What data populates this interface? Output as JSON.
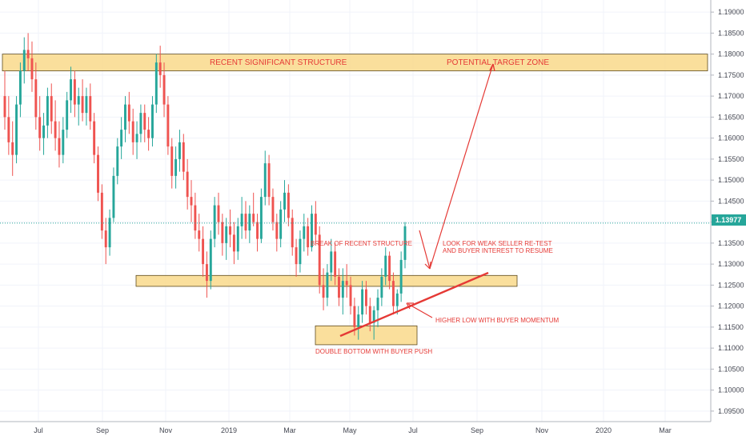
{
  "chart_data": {
    "type": "candlestick",
    "y_axis": {
      "min": 1.0925,
      "max": 1.1925,
      "ticks": [
        "1.19000",
        "1.18500",
        "1.18000",
        "1.17500",
        "1.17000",
        "1.16500",
        "1.16000",
        "1.15500",
        "1.15000",
        "1.14500",
        "1.14000",
        "1.13500",
        "1.13000",
        "1.12500",
        "1.12000",
        "1.11500",
        "1.11000",
        "1.10500",
        "1.10000",
        "1.09500"
      ],
      "last_price": "1.13977"
    },
    "x_axis": {
      "labels": [
        "Jul",
        "Sep",
        "Nov",
        "2019",
        "Mar",
        "May",
        "Jul",
        "Sep",
        "Nov",
        "2020",
        "Mar"
      ]
    },
    "grid": true,
    "up_color": "#26a69a",
    "down_color": "#ef5350",
    "zones": [
      {
        "name": "recent-significant-structure",
        "top": 1.18,
        "bottom": 1.176
      },
      {
        "name": "support-retest-zone",
        "top": 1.1273,
        "bottom": 1.1247
      },
      {
        "name": "double-bottom-zone",
        "top": 1.1153,
        "bottom": 1.1108
      }
    ],
    "annotations": {
      "top_zone_left": "RECENT SIGNIFICANT STRUCTURE",
      "top_zone_right": "POTENTIAL TARGET ZONE",
      "break": "BREAK OF RECENT STRUCTURE",
      "retest_line1": "LOOK FOR WEAK SELLER RE-TEST",
      "retest_line2": "AND BUYER INTEREST TO RESUME",
      "higher_low": "HIGHER LOW WITH BUYER MOMENTUM",
      "double_bottom": "DOUBLE BOTTOM WITH BUYER PUSH"
    },
    "annotation_color": "#e53935",
    "zone_fill": "#f9d98b",
    "candles": [
      [
        1.17,
        1.176,
        1.162,
        1.165
      ],
      [
        1.165,
        1.17,
        1.156,
        1.159
      ],
      [
        1.159,
        1.164,
        1.151,
        1.156
      ],
      [
        1.156,
        1.17,
        1.154,
        1.168
      ],
      [
        1.168,
        1.178,
        1.165,
        1.176
      ],
      [
        1.176,
        1.184,
        1.173,
        1.181
      ],
      [
        1.181,
        1.185,
        1.176,
        1.179
      ],
      [
        1.179,
        1.183,
        1.171,
        1.174
      ],
      [
        1.174,
        1.178,
        1.162,
        1.165
      ],
      [
        1.165,
        1.17,
        1.157,
        1.16
      ],
      [
        1.16,
        1.166,
        1.156,
        1.163
      ],
      [
        1.163,
        1.172,
        1.16,
        1.17
      ],
      [
        1.17,
        1.173,
        1.161,
        1.164
      ],
      [
        1.164,
        1.169,
        1.157,
        1.16
      ],
      [
        1.16,
        1.164,
        1.153,
        1.156
      ],
      [
        1.156,
        1.165,
        1.154,
        1.162
      ],
      [
        1.162,
        1.171,
        1.16,
        1.169
      ],
      [
        1.169,
        1.177,
        1.166,
        1.174
      ],
      [
        1.174,
        1.176,
        1.165,
        1.168
      ],
      [
        1.168,
        1.172,
        1.163,
        1.17
      ],
      [
        1.17,
        1.174,
        1.164,
        1.166
      ],
      [
        1.166,
        1.172,
        1.163,
        1.17
      ],
      [
        1.17,
        1.173,
        1.162,
        1.164
      ],
      [
        1.164,
        1.166,
        1.154,
        1.156
      ],
      [
        1.156,
        1.158,
        1.145,
        1.147
      ],
      [
        1.147,
        1.149,
        1.136,
        1.138
      ],
      [
        1.138,
        1.141,
        1.13,
        1.134
      ],
      [
        1.134,
        1.143,
        1.132,
        1.141
      ],
      [
        1.141,
        1.153,
        1.14,
        1.151
      ],
      [
        1.151,
        1.16,
        1.149,
        1.158
      ],
      [
        1.158,
        1.165,
        1.155,
        1.162
      ],
      [
        1.162,
        1.17,
        1.159,
        1.168
      ],
      [
        1.168,
        1.171,
        1.161,
        1.164
      ],
      [
        1.164,
        1.167,
        1.156,
        1.159
      ],
      [
        1.159,
        1.164,
        1.155,
        1.161
      ],
      [
        1.161,
        1.168,
        1.159,
        1.166
      ],
      [
        1.166,
        1.168,
        1.159,
        1.162
      ],
      [
        1.162,
        1.165,
        1.157,
        1.16
      ],
      [
        1.16,
        1.17,
        1.158,
        1.168
      ],
      [
        1.168,
        1.18,
        1.166,
        1.178
      ],
      [
        1.178,
        1.182,
        1.172,
        1.175
      ],
      [
        1.175,
        1.178,
        1.165,
        1.168
      ],
      [
        1.168,
        1.17,
        1.156,
        1.158
      ],
      [
        1.158,
        1.16,
        1.148,
        1.151
      ],
      [
        1.151,
        1.158,
        1.148,
        1.155
      ],
      [
        1.155,
        1.162,
        1.152,
        1.159
      ],
      [
        1.159,
        1.161,
        1.15,
        1.152
      ],
      [
        1.152,
        1.155,
        1.143,
        1.146
      ],
      [
        1.146,
        1.15,
        1.14,
        1.144
      ],
      [
        1.144,
        1.147,
        1.136,
        1.138
      ],
      [
        1.138,
        1.142,
        1.133,
        1.136
      ],
      [
        1.136,
        1.139,
        1.127,
        1.13
      ],
      [
        1.13,
        1.133,
        1.122,
        1.126
      ],
      [
        1.126,
        1.138,
        1.124,
        1.136
      ],
      [
        1.136,
        1.146,
        1.134,
        1.144
      ],
      [
        1.144,
        1.147,
        1.137,
        1.14
      ],
      [
        1.14,
        1.142,
        1.132,
        1.135
      ],
      [
        1.135,
        1.141,
        1.131,
        1.139
      ],
      [
        1.139,
        1.143,
        1.134,
        1.137
      ],
      [
        1.137,
        1.14,
        1.13,
        1.133
      ],
      [
        1.133,
        1.141,
        1.131,
        1.139
      ],
      [
        1.139,
        1.146,
        1.136,
        1.142
      ],
      [
        1.142,
        1.145,
        1.136,
        1.138
      ],
      [
        1.138,
        1.144,
        1.135,
        1.142
      ],
      [
        1.142,
        1.147,
        1.139,
        1.14
      ],
      [
        1.14,
        1.142,
        1.133,
        1.136
      ],
      [
        1.136,
        1.148,
        1.135,
        1.146
      ],
      [
        1.146,
        1.157,
        1.144,
        1.154
      ],
      [
        1.154,
        1.156,
        1.144,
        1.146
      ],
      [
        1.146,
        1.148,
        1.138,
        1.14
      ],
      [
        1.14,
        1.142,
        1.133,
        1.136
      ],
      [
        1.136,
        1.145,
        1.134,
        1.143
      ],
      [
        1.143,
        1.15,
        1.14,
        1.147
      ],
      [
        1.147,
        1.149,
        1.139,
        1.141
      ],
      [
        1.141,
        1.143,
        1.132,
        1.134
      ],
      [
        1.134,
        1.136,
        1.127,
        1.13
      ],
      [
        1.13,
        1.138,
        1.128,
        1.136
      ],
      [
        1.136,
        1.142,
        1.133,
        1.139
      ],
      [
        1.139,
        1.141,
        1.132,
        1.134
      ],
      [
        1.134,
        1.144,
        1.133,
        1.142
      ],
      [
        1.142,
        1.145,
        1.135,
        1.137
      ],
      [
        1.137,
        1.139,
        1.123,
        1.125
      ],
      [
        1.125,
        1.129,
        1.119,
        1.122
      ],
      [
        1.122,
        1.13,
        1.12,
        1.128
      ],
      [
        1.128,
        1.136,
        1.126,
        1.133
      ],
      [
        1.133,
        1.135,
        1.125,
        1.127
      ],
      [
        1.127,
        1.129,
        1.12,
        1.122
      ],
      [
        1.122,
        1.129,
        1.118,
        1.126
      ],
      [
        1.126,
        1.13,
        1.122,
        1.125
      ],
      [
        1.125,
        1.127,
        1.118,
        1.12
      ],
      [
        1.12,
        1.122,
        1.113,
        1.115
      ],
      [
        1.115,
        1.12,
        1.112,
        1.118
      ],
      [
        1.118,
        1.126,
        1.116,
        1.124
      ],
      [
        1.124,
        1.126,
        1.118,
        1.12
      ],
      [
        1.12,
        1.122,
        1.114,
        1.116
      ],
      [
        1.116,
        1.12,
        1.112,
        1.119
      ],
      [
        1.119,
        1.124,
        1.115,
        1.122
      ],
      [
        1.122,
        1.129,
        1.12,
        1.127
      ],
      [
        1.127,
        1.134,
        1.125,
        1.132
      ],
      [
        1.132,
        1.133,
        1.124,
        1.126
      ],
      [
        1.126,
        1.128,
        1.118,
        1.12
      ],
      [
        1.12,
        1.124,
        1.118,
        1.123
      ],
      [
        1.123,
        1.133,
        1.121,
        1.131
      ],
      [
        1.131,
        1.14,
        1.129,
        1.139
      ]
    ]
  }
}
